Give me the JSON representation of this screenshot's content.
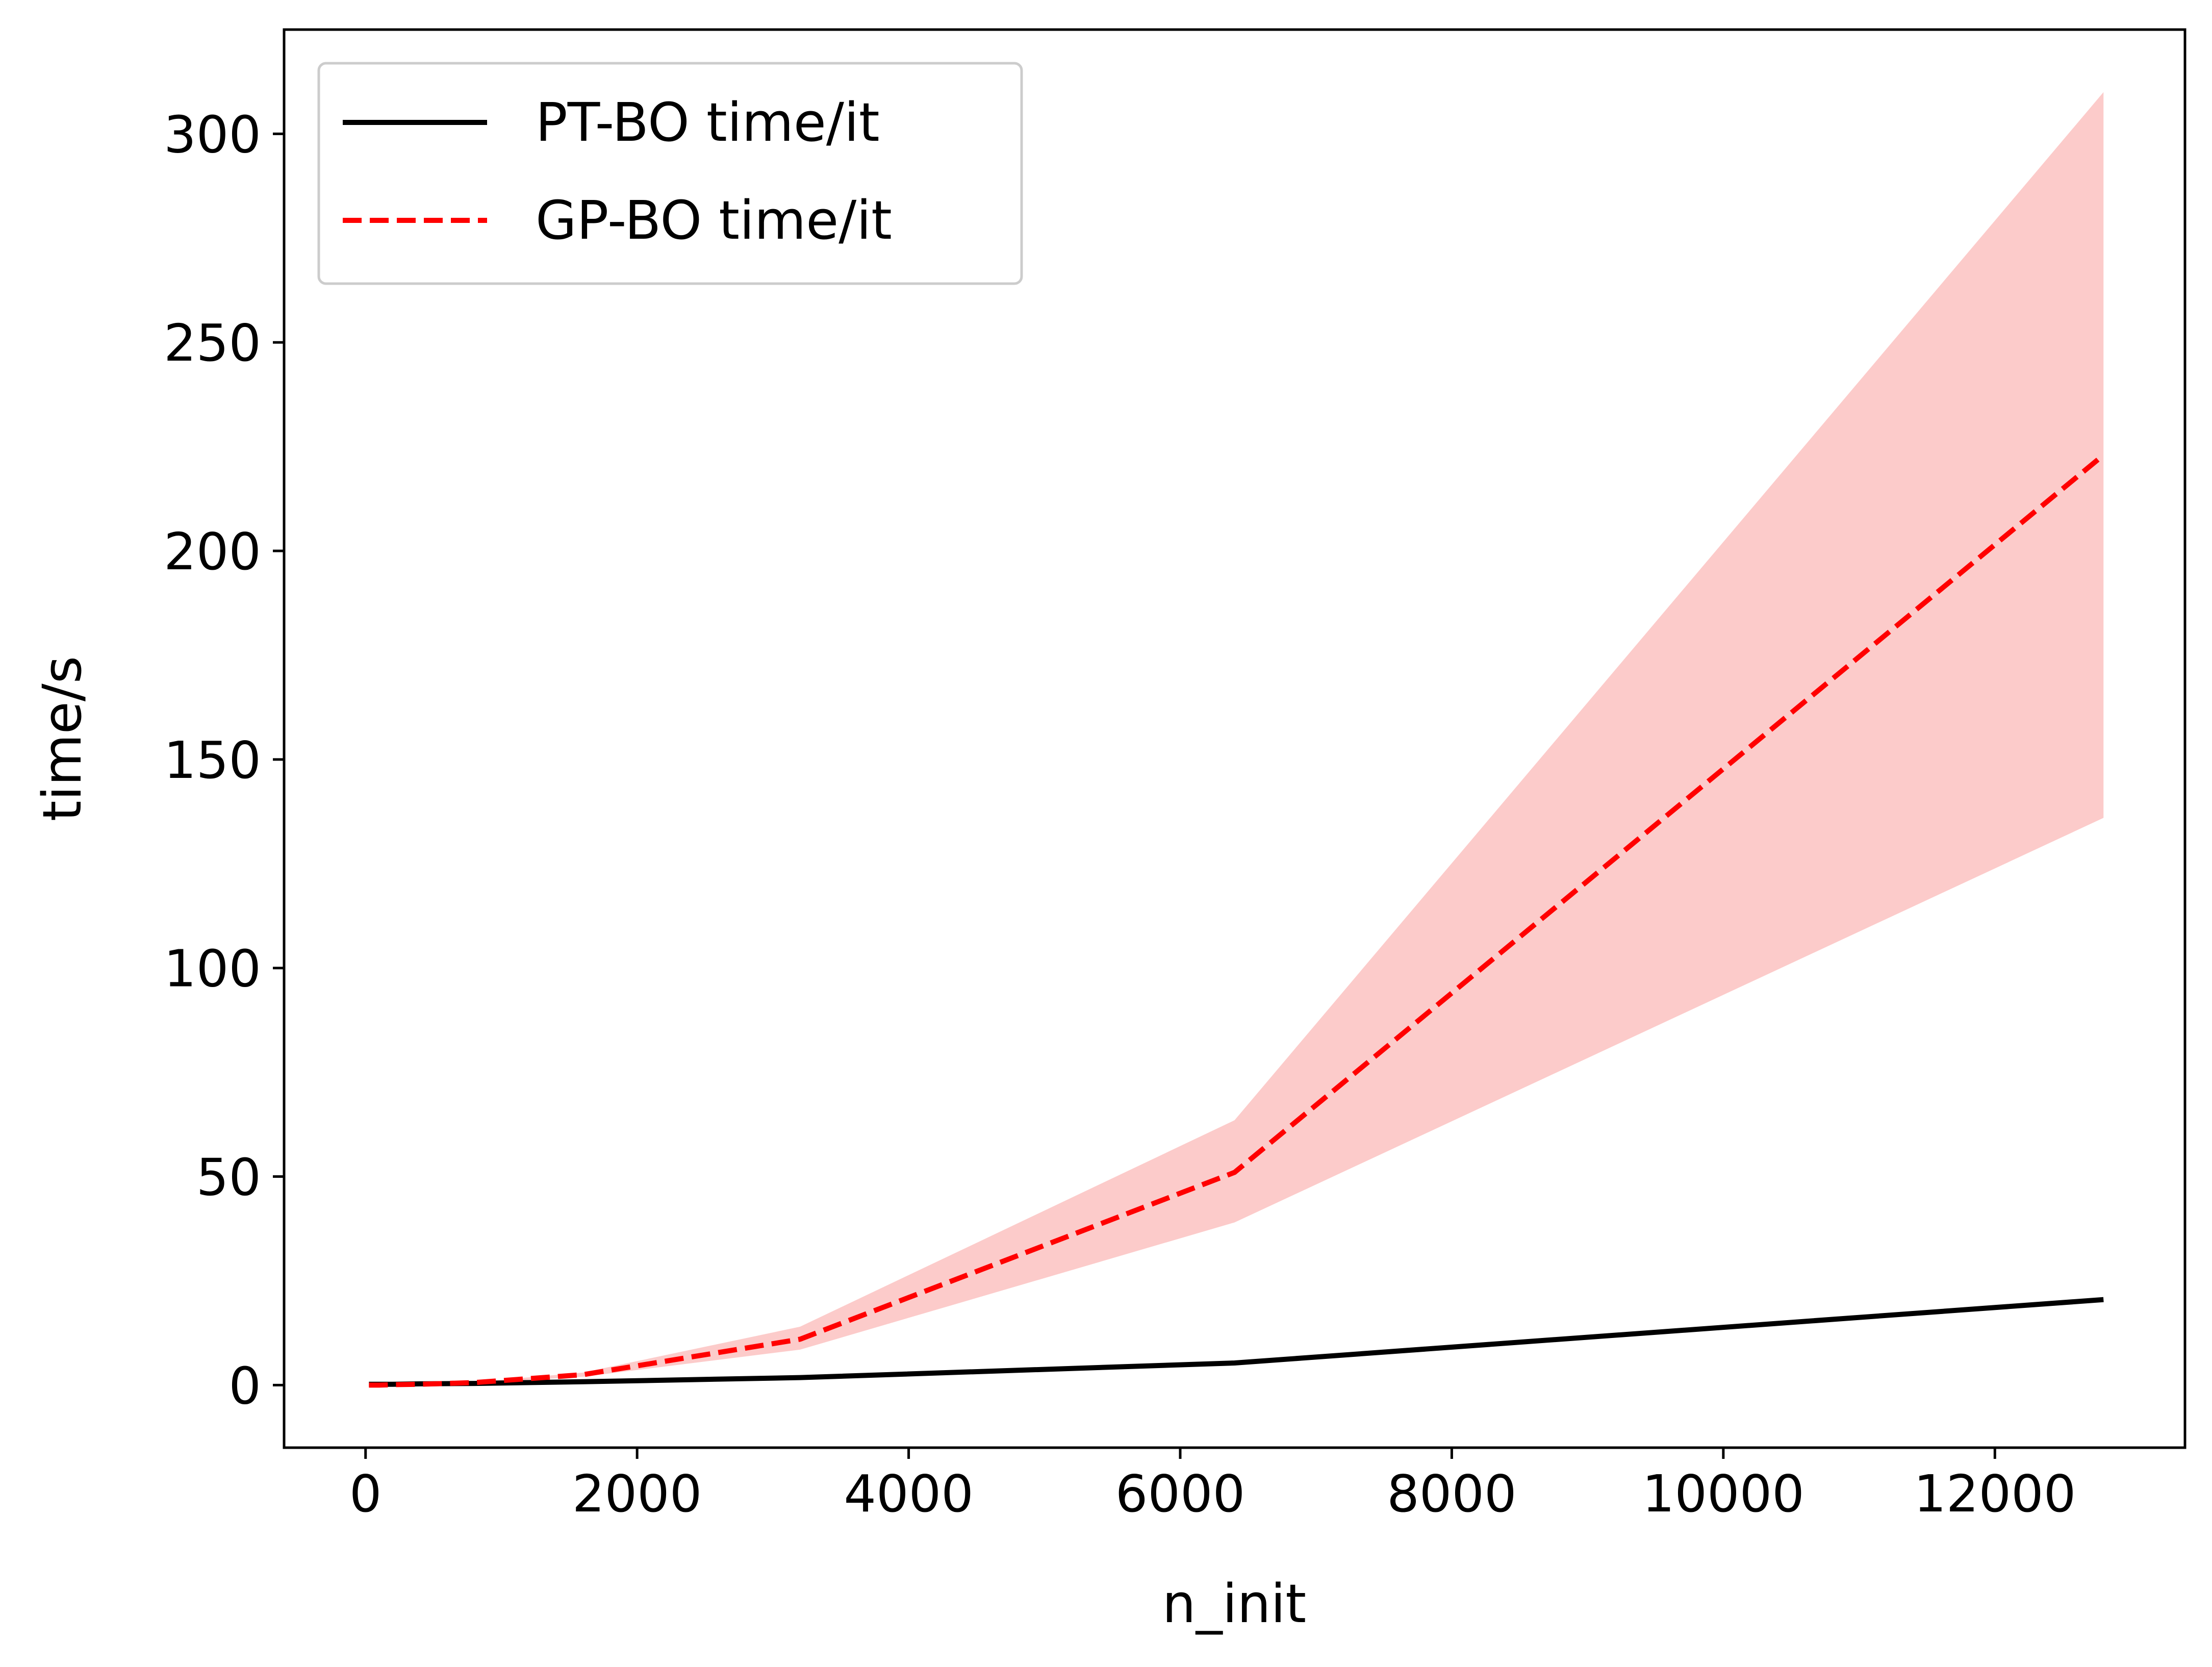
{
  "chart_data": {
    "type": "line",
    "title": "",
    "xlabel": "n_init",
    "ylabel": "time/s",
    "xlim": [
      -600,
      13400
    ],
    "ylim": [
      -15,
      325
    ],
    "x_ticks": [
      0,
      2000,
      4000,
      6000,
      8000,
      10000,
      12000
    ],
    "y_ticks": [
      0,
      50,
      100,
      150,
      200,
      250,
      300
    ],
    "x_tick_labels": [
      "0",
      "2000",
      "4000",
      "6000",
      "8000",
      "10000",
      "12000"
    ],
    "y_tick_labels": [
      "0",
      "50",
      "100",
      "150",
      "200",
      "250",
      "300"
    ],
    "grid": false,
    "legend_position": "upper-left",
    "x": [
      25,
      50,
      100,
      200,
      400,
      800,
      1600,
      3200,
      6400,
      12800
    ],
    "series": [
      {
        "name": "PT-BO time/it",
        "color": "#000000",
        "line_style": "solid",
        "values": [
          0.2,
          0.2,
          0.2,
          0.2,
          0.3,
          0.4,
          0.8,
          1.8,
          5.3,
          20.5
        ]
      },
      {
        "name": "GP-BO time/it",
        "color": "#ff0000",
        "line_style": "dashed",
        "values": [
          0.0,
          0.0,
          0.0,
          0.1,
          0.2,
          0.6,
          2.5,
          11.0,
          51.0,
          223.0
        ],
        "band_lower": [
          0.0,
          0.0,
          0.0,
          0.1,
          0.2,
          0.5,
          2.0,
          8.5,
          39.0,
          136.0
        ],
        "band_upper": [
          0.0,
          0.0,
          0.0,
          0.1,
          0.2,
          0.7,
          3.0,
          14.0,
          63.5,
          310.0
        ],
        "band_color": "#fccbca"
      }
    ]
  }
}
